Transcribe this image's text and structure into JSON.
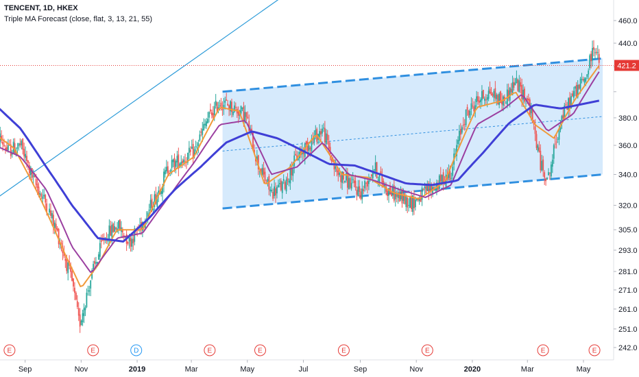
{
  "header": {
    "symbol_title": "TENCENT, 1D, HKEX",
    "indicator": "Triple MA Forecast (close, flat, 3, 13, 21, 55)"
  },
  "colors": {
    "up_candle": "#26a69a",
    "down_candle": "#ef5350",
    "ma_fast": "#f09a3a",
    "ma_mid": "#9b3fa0",
    "ma_slow": "#3f3fd6",
    "channel_line": "#2f8fe0",
    "channel_fill": "#cfe6fb",
    "trend_line": "#2a9ad8",
    "last_price": "#e53935",
    "event_earnings": "#e53935",
    "event_dividend": "#2196f3"
  },
  "chart_data": {
    "type": "candlestick",
    "symbol": "TENCENT",
    "interval": "1D",
    "exchange": "HKEX",
    "scale": "log",
    "grid": false,
    "y_ticks": [
      242.0,
      251.0,
      261.0,
      271.0,
      281.0,
      293.0,
      305.0,
      320.0,
      340.0,
      360.0,
      380.0,
      400.0,
      420.0,
      440.0,
      460.0
    ],
    "y_tick_labels": [
      "242.0",
      "251.0",
      "261.0",
      "271.0",
      "281.0",
      "293.0",
      "305.0",
      "320.0",
      "340.0",
      "360.0",
      "380.0",
      "",
      "",
      "440.0",
      "460.0"
    ],
    "last_price": 421.2,
    "last_price_label": "421.2",
    "x_labels": [
      "Sep",
      "Nov",
      "2019",
      "Mar",
      "May",
      "Jul",
      "Sep",
      "Nov",
      "2020",
      "Mar",
      "May"
    ],
    "x_label_dates": [
      "2018-09-01",
      "2018-11-01",
      "2019-01-01",
      "2019-03-01",
      "2019-05-01",
      "2019-07-01",
      "2019-09-01",
      "2019-11-01",
      "2020-01-01",
      "2020-03-01",
      "2020-05-01"
    ],
    "price_path": [
      [
        "2018-07-30",
        372
      ],
      [
        "2018-08-13",
        356
      ],
      [
        "2018-08-27",
        360
      ],
      [
        "2018-09-10",
        336
      ],
      [
        "2018-09-24",
        321
      ],
      [
        "2018-10-08",
        300
      ],
      [
        "2018-10-22",
        275
      ],
      [
        "2018-10-30",
        253
      ],
      [
        "2018-11-12",
        278
      ],
      [
        "2018-11-26",
        300
      ],
      [
        "2018-12-10",
        308
      ],
      [
        "2018-12-24",
        298
      ],
      [
        "2019-01-07",
        310
      ],
      [
        "2019-01-21",
        325
      ],
      [
        "2019-02-04",
        345
      ],
      [
        "2019-02-18",
        350
      ],
      [
        "2019-03-04",
        355
      ],
      [
        "2019-03-18",
        378
      ],
      [
        "2019-04-01",
        392
      ],
      [
        "2019-04-15",
        388
      ],
      [
        "2019-04-29",
        382
      ],
      [
        "2019-05-13",
        346
      ],
      [
        "2019-05-27",
        328
      ],
      [
        "2019-06-10",
        333
      ],
      [
        "2019-06-24",
        352
      ],
      [
        "2019-07-08",
        362
      ],
      [
        "2019-07-22",
        372
      ],
      [
        "2019-08-05",
        342
      ],
      [
        "2019-08-19",
        335
      ],
      [
        "2019-09-02",
        328
      ],
      [
        "2019-09-16",
        345
      ],
      [
        "2019-09-30",
        330
      ],
      [
        "2019-10-14",
        325
      ],
      [
        "2019-10-28",
        322
      ],
      [
        "2019-11-11",
        328
      ],
      [
        "2019-11-25",
        334
      ],
      [
        "2019-12-09",
        342
      ],
      [
        "2019-12-23",
        380
      ],
      [
        "2020-01-06",
        393
      ],
      [
        "2020-01-20",
        400
      ],
      [
        "2020-02-03",
        392
      ],
      [
        "2020-02-17",
        408
      ],
      [
        "2020-03-02",
        392
      ],
      [
        "2020-03-16",
        345
      ],
      [
        "2020-03-24",
        338
      ],
      [
        "2020-04-06",
        378
      ],
      [
        "2020-04-20",
        398
      ],
      [
        "2020-05-04",
        412
      ],
      [
        "2020-05-13",
        440
      ],
      [
        "2020-05-18",
        421.2
      ]
    ],
    "candle_count": 455,
    "moving_averages": [
      {
        "name": "MA 3",
        "color_key": "ma_fast",
        "path": [
          [
            "2018-07-30",
            368
          ],
          [
            "2018-08-20",
            358
          ],
          [
            "2018-09-17",
            325
          ],
          [
            "2018-10-15",
            290
          ],
          [
            "2018-11-01",
            272
          ],
          [
            "2018-11-20",
            285
          ],
          [
            "2018-12-10",
            305
          ],
          [
            "2019-01-07",
            305
          ],
          [
            "2019-02-04",
            340
          ],
          [
            "2019-03-04",
            352
          ],
          [
            "2019-04-01",
            388
          ],
          [
            "2019-04-22",
            385
          ],
          [
            "2019-05-20",
            333
          ],
          [
            "2019-06-17",
            345
          ],
          [
            "2019-07-15",
            368
          ],
          [
            "2019-08-12",
            340
          ],
          [
            "2019-09-09",
            338
          ],
          [
            "2019-10-07",
            328
          ],
          [
            "2019-11-04",
            324
          ],
          [
            "2019-12-02",
            335
          ],
          [
            "2020-01-06",
            388
          ],
          [
            "2020-02-03",
            393
          ],
          [
            "2020-02-17",
            400
          ],
          [
            "2020-03-09",
            375
          ],
          [
            "2020-03-30",
            365
          ],
          [
            "2020-04-20",
            392
          ],
          [
            "2020-05-18",
            421
          ]
        ]
      },
      {
        "name": "MA 13",
        "color_key": "ma_mid",
        "path": [
          [
            "2018-07-30",
            360
          ],
          [
            "2018-08-27",
            352
          ],
          [
            "2018-09-24",
            330
          ],
          [
            "2018-10-22",
            295
          ],
          [
            "2018-11-12",
            280
          ],
          [
            "2018-12-10",
            300
          ],
          [
            "2019-01-07",
            303
          ],
          [
            "2019-02-04",
            325
          ],
          [
            "2019-03-04",
            348
          ],
          [
            "2019-04-01",
            375
          ],
          [
            "2019-04-29",
            378
          ],
          [
            "2019-05-27",
            340
          ],
          [
            "2019-06-24",
            345
          ],
          [
            "2019-07-22",
            362
          ],
          [
            "2019-08-19",
            340
          ],
          [
            "2019-09-16",
            336
          ],
          [
            "2019-10-14",
            330
          ],
          [
            "2019-11-11",
            325
          ],
          [
            "2019-12-09",
            333
          ],
          [
            "2020-01-06",
            375
          ],
          [
            "2020-02-03",
            386
          ],
          [
            "2020-02-24",
            398
          ],
          [
            "2020-03-23",
            370
          ],
          [
            "2020-04-20",
            383
          ],
          [
            "2020-05-18",
            416
          ]
        ]
      },
      {
        "name": "MA 55",
        "color_key": "ma_slow",
        "path": [
          [
            "2018-07-30",
            390
          ],
          [
            "2018-08-27",
            372
          ],
          [
            "2018-09-24",
            345
          ],
          [
            "2018-10-22",
            320
          ],
          [
            "2018-11-19",
            300
          ],
          [
            "2018-12-17",
            298
          ],
          [
            "2019-01-14",
            312
          ],
          [
            "2019-02-11",
            330
          ],
          [
            "2019-03-11",
            345
          ],
          [
            "2019-04-08",
            362
          ],
          [
            "2019-05-06",
            370
          ],
          [
            "2019-06-03",
            365
          ],
          [
            "2019-07-01",
            356
          ],
          [
            "2019-07-29",
            347
          ],
          [
            "2019-08-26",
            346
          ],
          [
            "2019-09-23",
            340
          ],
          [
            "2019-10-21",
            334
          ],
          [
            "2019-11-18",
            333
          ],
          [
            "2019-12-16",
            336
          ],
          [
            "2020-01-13",
            355
          ],
          [
            "2020-02-10",
            376
          ],
          [
            "2020-03-09",
            390
          ],
          [
            "2020-04-06",
            387
          ],
          [
            "2020-05-18",
            393
          ]
        ]
      }
    ],
    "channel": {
      "start_date": "2019-04-04",
      "end_date": "2020-05-22",
      "upper": [
        400,
        427
      ],
      "lower": [
        318,
        340
      ],
      "mid": [
        356,
        381
      ]
    },
    "trend_line": {
      "dates": [
        "2018-07-26",
        "2019-10-04"
      ],
      "values": [
        322,
        560
      ]
    },
    "events": [
      {
        "label": "E",
        "type": "earnings",
        "date": "2018-08-15"
      },
      {
        "label": "E",
        "type": "earnings",
        "date": "2018-11-14"
      },
      {
        "label": "D",
        "type": "dividend",
        "date": "2018-12-31"
      },
      {
        "label": "E",
        "type": "earnings",
        "date": "2019-03-21"
      },
      {
        "label": "E",
        "type": "earnings",
        "date": "2019-05-15"
      },
      {
        "label": "E",
        "type": "earnings",
        "date": "2019-08-14"
      },
      {
        "label": "E",
        "type": "earnings",
        "date": "2019-11-13"
      },
      {
        "label": "E",
        "type": "earnings",
        "date": "2020-03-18"
      },
      {
        "label": "E",
        "type": "earnings",
        "date": "2020-05-13"
      }
    ]
  }
}
